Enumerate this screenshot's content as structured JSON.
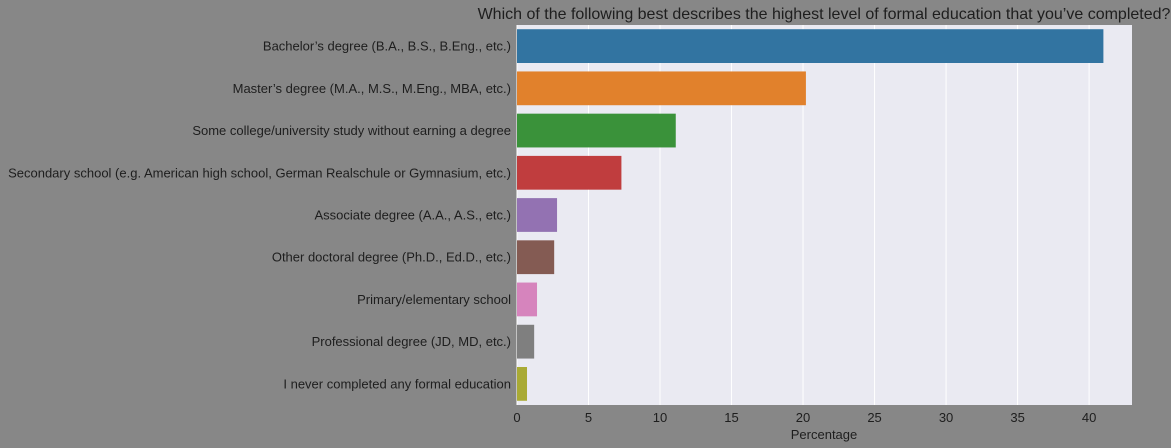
{
  "chart_data": {
    "type": "bar",
    "orientation": "horizontal",
    "title": "Which of the following best describes the highest level of formal education that you’ve completed?",
    "xlabel": "Percentage",
    "ylabel": "",
    "xlim": [
      0,
      43
    ],
    "xticks": [
      0,
      5,
      10,
      15,
      20,
      25,
      30,
      35,
      40
    ],
    "grid": true,
    "categories": [
      "Bachelor’s degree (B.A., B.S., B.Eng., etc.)",
      "Master’s degree (M.A., M.S., M.Eng., MBA, etc.)",
      "Some college/university study without earning a degree",
      "Secondary school (e.g. American high school, German Realschule or Gymnasium, etc.)",
      "Associate degree (A.A., A.S., etc.)",
      "Other doctoral degree (Ph.D., Ed.D., etc.)",
      "Primary/elementary school",
      "Professional degree (JD, MD, etc.)",
      "I never completed any formal education"
    ],
    "values": [
      41.0,
      20.2,
      11.1,
      7.3,
      2.8,
      2.6,
      1.4,
      1.2,
      0.7
    ],
    "colors": [
      "#3274a1",
      "#e1812c",
      "#3a923a",
      "#c03d3e",
      "#9372b2",
      "#845b53",
      "#d684bd",
      "#7f7f7f",
      "#a9aa35"
    ],
    "background": "#878787",
    "plot_background": "#eaeaf2"
  }
}
